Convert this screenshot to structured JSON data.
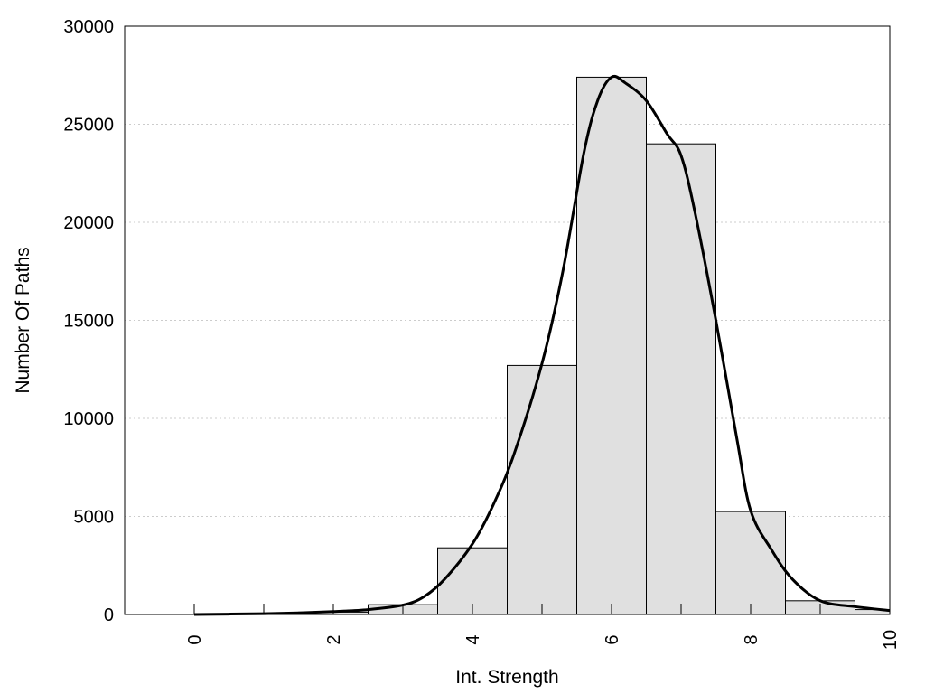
{
  "chart_data": {
    "type": "bar",
    "title": "",
    "xlabel": "Int. Strength",
    "ylabel": "Number Of Paths",
    "xlim": [
      -1,
      10
    ],
    "ylim": [
      0,
      30000
    ],
    "x_ticks": [
      "0",
      "2",
      "4",
      "6",
      "8",
      "10"
    ],
    "y_ticks": [
      "0",
      "5000",
      "10000",
      "15000",
      "20000",
      "25000",
      "30000"
    ],
    "grid": "horizontal dotted",
    "colors": {
      "bar_fill": "#e0e0e0",
      "bar_stroke": "#000000",
      "curve": "#000000",
      "grid": "#cccccc"
    },
    "bars": [
      {
        "x": 0,
        "value": 10
      },
      {
        "x": 1,
        "value": 20
      },
      {
        "x": 2,
        "value": 120
      },
      {
        "x": 3,
        "value": 500
      },
      {
        "x": 4,
        "value": 3400
      },
      {
        "x": 5,
        "value": 12700
      },
      {
        "x": 6,
        "value": 27400
      },
      {
        "x": 7,
        "value": 24000
      },
      {
        "x": 8,
        "value": 5250
      },
      {
        "x": 9,
        "value": 700
      },
      {
        "x": 10,
        "value": 250
      }
    ],
    "curve": {
      "x": [
        0,
        0.5,
        1,
        1.5,
        2,
        2.5,
        3,
        3.3,
        3.6,
        4,
        4.3,
        4.6,
        5,
        5.3,
        5.6,
        5.8,
        6,
        6.2,
        6.5,
        6.8,
        7,
        7.2,
        7.5,
        7.8,
        8,
        8.3,
        8.6,
        9,
        9.5,
        10
      ],
      "y": [
        0,
        20,
        40,
        80,
        150,
        250,
        480,
        900,
        1800,
        3600,
        5600,
        8200,
        12800,
        17500,
        23500,
        26200,
        27400,
        27100,
        26200,
        24500,
        23400,
        20500,
        15000,
        9000,
        5300,
        3300,
        1800,
        700,
        400,
        200
      ]
    }
  }
}
